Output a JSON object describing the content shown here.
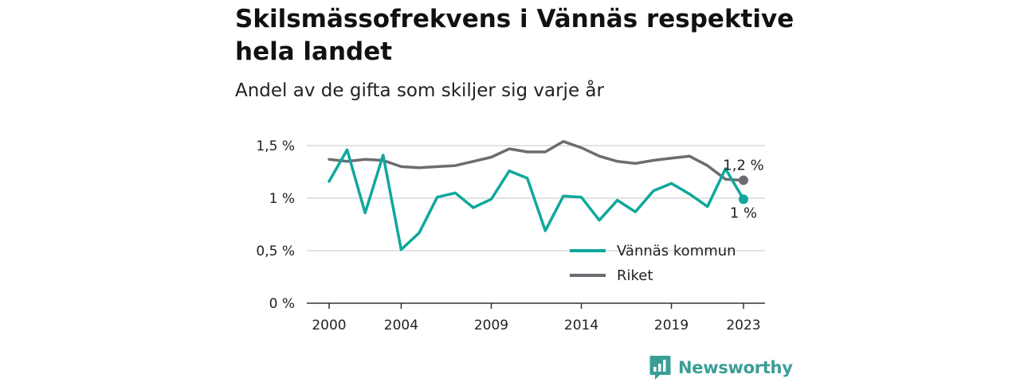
{
  "title": "Skilsmässofrekvens i Vännäs respektive hela landet",
  "subtitle": "Andel av de gifta som skiljer sig varje år",
  "brand": {
    "name": "Newsworthy",
    "icon": "bar-chart-speech-bubble-icon",
    "color": "#3a9e97"
  },
  "chart_data": {
    "type": "line",
    "x": [
      2000,
      2001,
      2002,
      2003,
      2004,
      2005,
      2006,
      2007,
      2008,
      2009,
      2010,
      2011,
      2012,
      2013,
      2014,
      2015,
      2016,
      2017,
      2018,
      2019,
      2020,
      2021,
      2022,
      2023
    ],
    "xticks": [
      2000,
      2004,
      2009,
      2014,
      2019,
      2023
    ],
    "xtick_labels": [
      "2000",
      "2004",
      "2009",
      "2014",
      "2019",
      "2023"
    ],
    "ylim": [
      0,
      1.5
    ],
    "yticks": [
      0,
      0.5,
      1,
      1.5
    ],
    "ytick_labels": [
      "0 %",
      "0,5 %",
      "1 %",
      "1,5 %"
    ],
    "grid": true,
    "legend_position": "bottom-right",
    "series": [
      {
        "name": "Vännäs kommun",
        "color": "#0fa89c",
        "values": [
          1.16,
          1.46,
          0.86,
          1.41,
          0.51,
          0.67,
          1.01,
          1.05,
          0.91,
          0.99,
          1.26,
          1.19,
          0.69,
          1.02,
          1.01,
          0.79,
          0.98,
          0.87,
          1.07,
          1.14,
          1.04,
          0.92,
          1.28,
          0.99
        ],
        "end_label": "1 %"
      },
      {
        "name": "Riket",
        "color": "#6d6c72",
        "values": [
          1.37,
          1.35,
          1.37,
          1.36,
          1.3,
          1.29,
          1.3,
          1.31,
          1.35,
          1.39,
          1.47,
          1.44,
          1.44,
          1.54,
          1.48,
          1.4,
          1.35,
          1.33,
          1.36,
          1.38,
          1.4,
          1.31,
          1.18,
          1.17
        ],
        "end_label": "1,2 %"
      }
    ]
  }
}
